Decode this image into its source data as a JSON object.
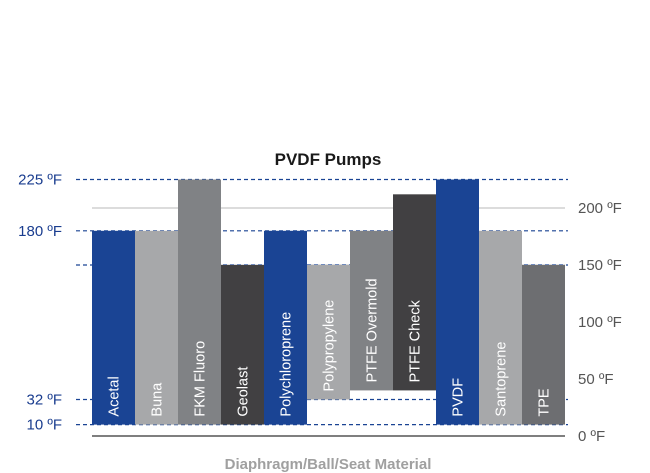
{
  "chart_data": {
    "type": "bar",
    "subtype": "floating-range",
    "title": "PVDF Pumps",
    "xlabel": "Diaphragm/Ball/Seat Material",
    "ylabel": "",
    "ylim": [
      0,
      230
    ],
    "categories": [
      "Acetal",
      "Buna",
      "FKM Fluoro",
      "Geolast",
      "Polychloroprene",
      "Polypropylene",
      "PTFE Overmold",
      "PTFE Check",
      "PVDF",
      "Santoprene",
      "TPE"
    ],
    "ranges": [
      {
        "category": "Acetal",
        "low": 10,
        "high": 180
      },
      {
        "category": "Buna",
        "low": 10,
        "high": 180
      },
      {
        "category": "FKM Fluoro",
        "low": 10,
        "high": 225
      },
      {
        "category": "Geolast",
        "low": 10,
        "high": 150
      },
      {
        "category": "Polychloroprene",
        "low": 10,
        "high": 180
      },
      {
        "category": "Polypropylene",
        "low": 32,
        "high": 150
      },
      {
        "category": "PTFE Overmold",
        "low": 40,
        "high": 180
      },
      {
        "category": "PTFE Check",
        "low": 40,
        "high": 212
      },
      {
        "category": "PVDF",
        "low": 10,
        "high": 225
      },
      {
        "category": "Santoprene",
        "low": 10,
        "high": 180
      },
      {
        "category": "TPE",
        "low": 10,
        "high": 150
      }
    ],
    "colors": [
      "#1a4494",
      "#a7a8aa",
      "#808285",
      "#414042",
      "#1a4494",
      "#a7a8aa",
      "#808285",
      "#414042",
      "#1a4494",
      "#a7a8aa",
      "#6d6e71"
    ],
    "left_ticks": [
      {
        "label": "225 ºF",
        "value": 225
      },
      {
        "label": "180 ºF",
        "value": 180
      },
      {
        "label": "32 ºF",
        "value": 32
      },
      {
        "label": "10 ºF",
        "value": 10
      }
    ],
    "dashed_lines": [
      225,
      180,
      150,
      32,
      10
    ],
    "right_ticks": [
      {
        "label": "200 ºF",
        "value": 200
      },
      {
        "label": "150 ºF",
        "value": 150
      },
      {
        "label": "100 ºF",
        "value": 100
      },
      {
        "label": "50 ºF",
        "value": 50
      },
      {
        "label": "0 ºF",
        "value": 0
      }
    ],
    "grid": true,
    "grid_color": "#b8b8b8",
    "dash_color": "#1a4494",
    "tick_color_left": "#1a3d8f",
    "tick_color_right": "#555555"
  }
}
